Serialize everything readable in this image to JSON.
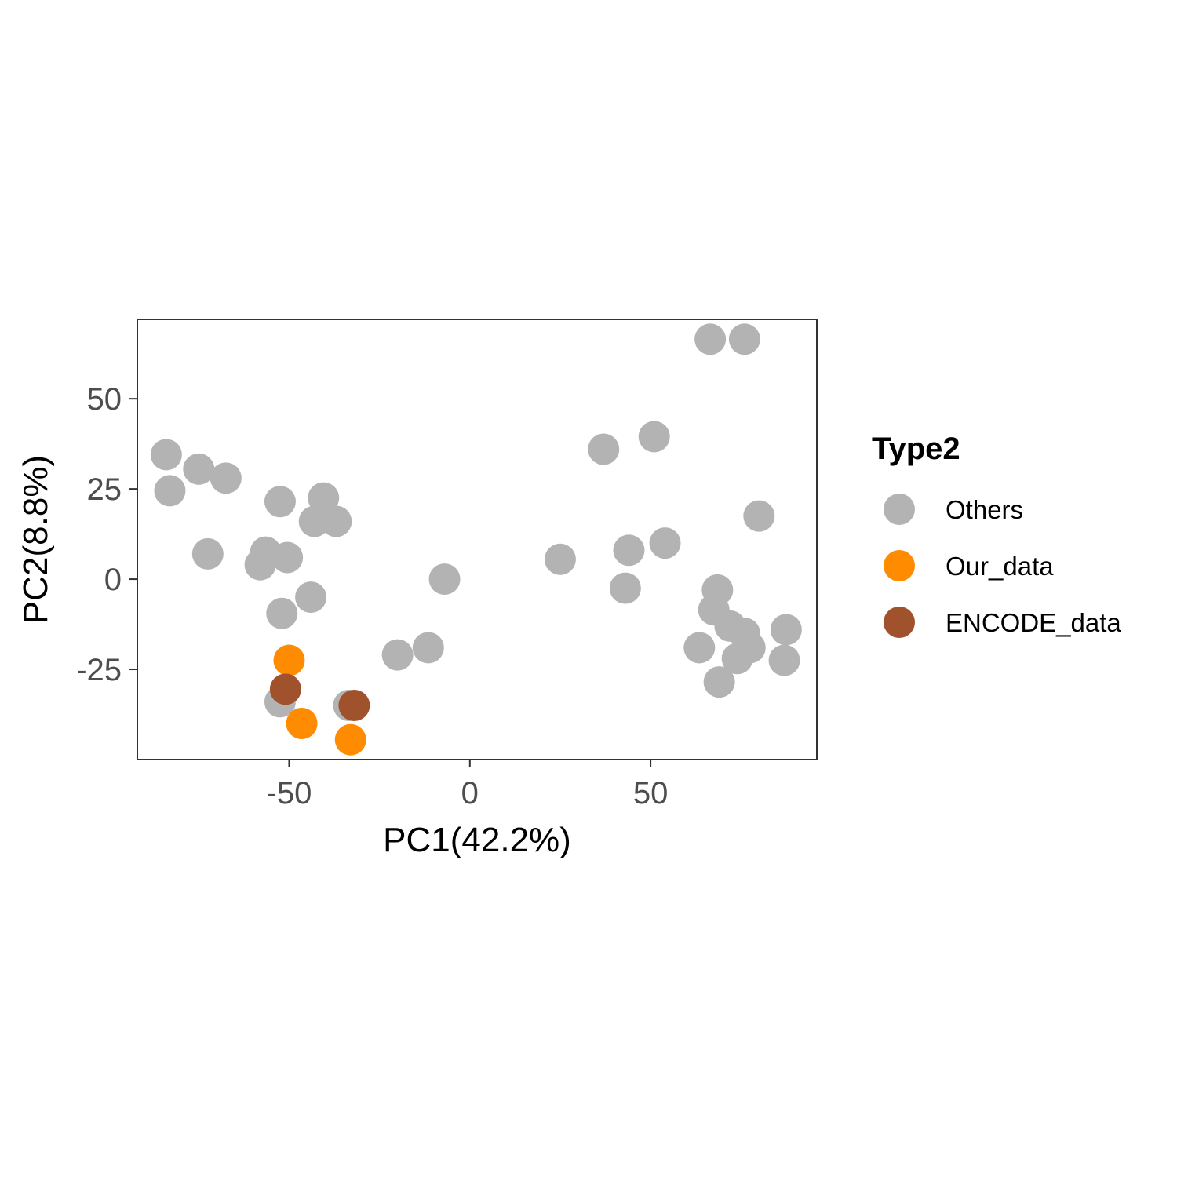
{
  "chart_data": {
    "type": "scatter",
    "title": "",
    "xlabel": "PC1(42.2%)",
    "ylabel": "PC2(8.8%)",
    "xlim": [
      -92,
      96
    ],
    "ylim": [
      -50,
      72
    ],
    "x_ticks": [
      -50,
      0,
      50
    ],
    "x_tick_labels": [
      "-50",
      "0",
      "50"
    ],
    "y_ticks": [
      -25,
      0,
      25,
      50
    ],
    "y_tick_labels": [
      "-25",
      "0",
      "25",
      "50"
    ],
    "grid": false,
    "legend": {
      "title": "Type2",
      "position": "right"
    },
    "series": [
      {
        "name": "Others",
        "color": "#b3b3b3",
        "points": [
          [
            -84,
            34.5
          ],
          [
            -83,
            24.5
          ],
          [
            -75,
            30.5
          ],
          [
            -67.5,
            28
          ],
          [
            -72.5,
            7
          ],
          [
            -52.5,
            21.5
          ],
          [
            -40.5,
            22.5
          ],
          [
            -43,
            16
          ],
          [
            -37,
            16
          ],
          [
            -56.5,
            7.5
          ],
          [
            -58,
            4
          ],
          [
            -50.5,
            6
          ],
          [
            -44,
            -5
          ],
          [
            -52,
            -9.5
          ],
          [
            -52.5,
            -34
          ],
          [
            -33.5,
            -35
          ],
          [
            -20,
            -21
          ],
          [
            -11.5,
            -19
          ],
          [
            -7,
            0
          ],
          [
            25,
            5.5
          ],
          [
            37,
            36
          ],
          [
            51,
            39.5
          ],
          [
            44,
            8
          ],
          [
            54,
            10
          ],
          [
            43,
            -2.5
          ],
          [
            66.5,
            66.5
          ],
          [
            76,
            66.5
          ],
          [
            80,
            17.5
          ],
          [
            68.5,
            -3
          ],
          [
            67.5,
            -8.5
          ],
          [
            72,
            -13
          ],
          [
            76,
            -15
          ],
          [
            77.5,
            -19
          ],
          [
            74,
            -22
          ],
          [
            63.5,
            -19
          ],
          [
            69,
            -28.5
          ],
          [
            87.5,
            -14
          ],
          [
            87,
            -22.5
          ]
        ]
      },
      {
        "name": "Our_data",
        "color": "#ff8c00",
        "points": [
          [
            -50,
            -22.5
          ],
          [
            -46.5,
            -40
          ],
          [
            -33,
            -44.5
          ]
        ]
      },
      {
        "name": "ENCODE_data",
        "color": "#a0522d",
        "points": [
          [
            -51,
            -30.5
          ],
          [
            -32,
            -35
          ]
        ]
      }
    ]
  }
}
